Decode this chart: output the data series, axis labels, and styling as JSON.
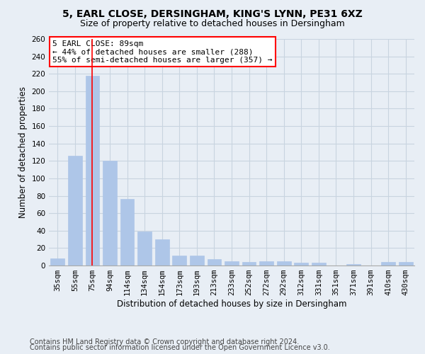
{
  "title": "5, EARL CLOSE, DERSINGHAM, KING'S LYNN, PE31 6XZ",
  "subtitle": "Size of property relative to detached houses in Dersingham",
  "xlabel": "Distribution of detached houses by size in Dersingham",
  "ylabel": "Number of detached properties",
  "categories": [
    "35sqm",
    "55sqm",
    "75sqm",
    "94sqm",
    "114sqm",
    "134sqm",
    "154sqm",
    "173sqm",
    "193sqm",
    "213sqm",
    "233sqm",
    "252sqm",
    "272sqm",
    "292sqm",
    "312sqm",
    "331sqm",
    "351sqm",
    "371sqm",
    "391sqm",
    "410sqm",
    "430sqm"
  ],
  "values": [
    8,
    126,
    218,
    120,
    76,
    39,
    30,
    11,
    11,
    7,
    5,
    4,
    5,
    5,
    3,
    3,
    0,
    2,
    0,
    4,
    4
  ],
  "bar_color": "#aec6e8",
  "bar_edgecolor": "#aec6e8",
  "vline_x": 2,
  "vline_color": "red",
  "annotation_line1": "5 EARL CLOSE: 89sqm",
  "annotation_line2": "← 44% of detached houses are smaller (288)",
  "annotation_line3": "55% of semi-detached houses are larger (357) →",
  "annotation_box_color": "white",
  "annotation_box_edgecolor": "red",
  "ylim": [
    0,
    260
  ],
  "yticks": [
    0,
    20,
    40,
    60,
    80,
    100,
    120,
    140,
    160,
    180,
    200,
    220,
    240,
    260
  ],
  "background_color": "#e8eef5",
  "plot_background": "#e8eef5",
  "grid_color": "#c8d4e0",
  "footer1": "Contains HM Land Registry data © Crown copyright and database right 2024.",
  "footer2": "Contains public sector information licensed under the Open Government Licence v3.0.",
  "title_fontsize": 10,
  "subtitle_fontsize": 9,
  "xlabel_fontsize": 8.5,
  "ylabel_fontsize": 8.5,
  "tick_fontsize": 7.5,
  "annotation_fontsize": 8,
  "footer_fontsize": 7
}
